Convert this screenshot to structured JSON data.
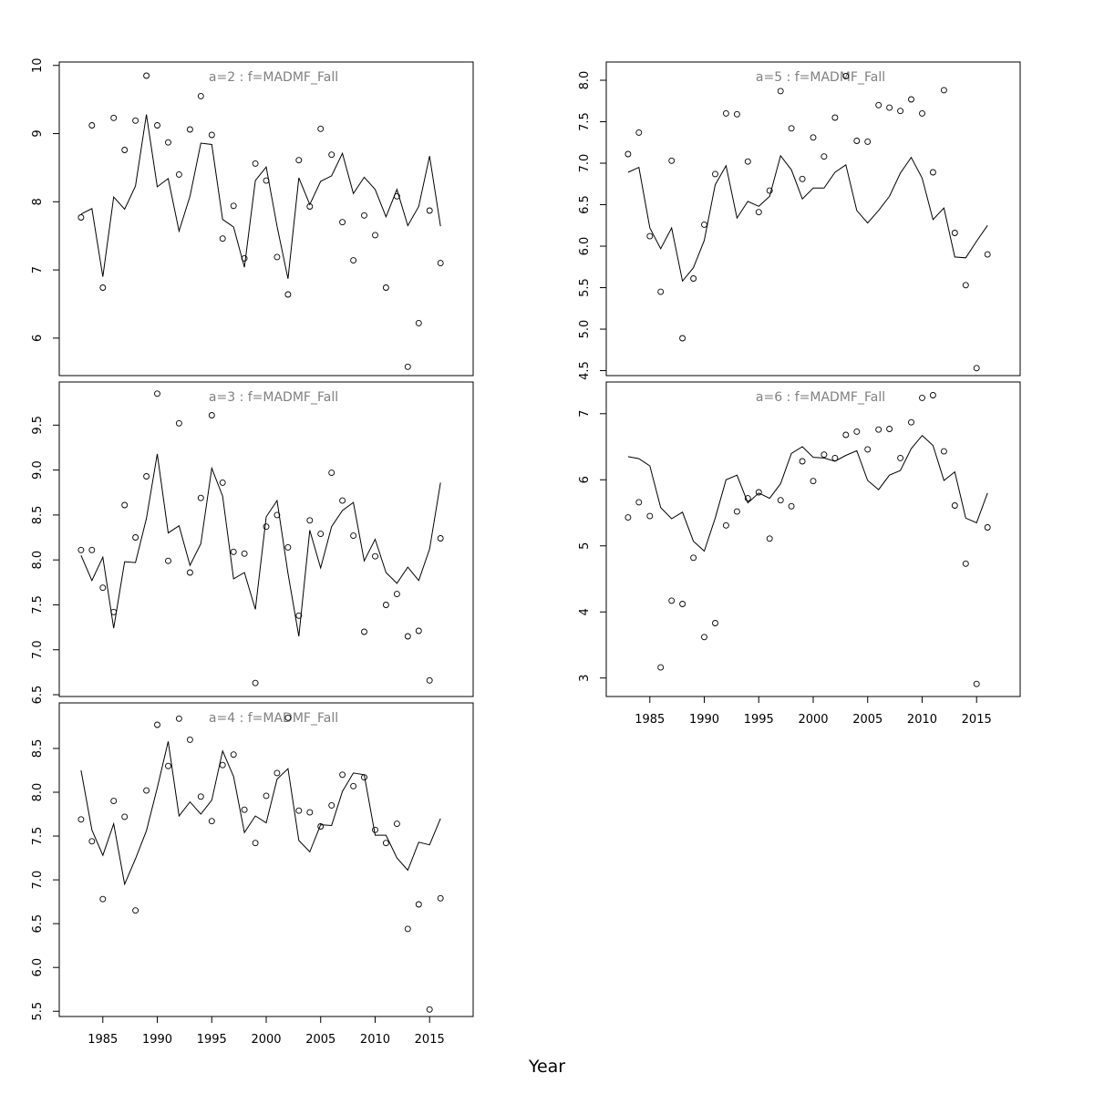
{
  "chart_data": {
    "type": "scatter",
    "xlabel": "Year",
    "x_ticks": [
      1985,
      1990,
      1995,
      2000,
      2005,
      2010,
      2015
    ],
    "years": [
      1983,
      1984,
      1985,
      1986,
      1987,
      1988,
      1989,
      1990,
      1991,
      1992,
      1993,
      1994,
      1995,
      1996,
      1997,
      1998,
      1999,
      2000,
      2001,
      2002,
      2003,
      2004,
      2005,
      2006,
      2007,
      2008,
      2009,
      2010,
      2011,
      2012,
      2013,
      2014,
      2015,
      2016
    ],
    "xlim": [
      1981.0,
      2019.0
    ],
    "panels": [
      {
        "title": "a=2 : f=MADMF_Fall",
        "ylim": [
          5.45,
          10.05
        ],
        "yticks": [
          6,
          7,
          8,
          9,
          10
        ],
        "ytick_labels": [
          "6",
          "7",
          "8",
          "9",
          "10"
        ],
        "observed": [
          7.77,
          9.12,
          6.74,
          9.23,
          8.76,
          9.19,
          9.85,
          9.12,
          8.87,
          8.4,
          9.06,
          9.55,
          8.98,
          7.46,
          7.94,
          7.17,
          8.56,
          8.31,
          7.19,
          6.64,
          8.61,
          7.93,
          9.07,
          8.69,
          7.7,
          7.14,
          7.8,
          7.51,
          6.74,
          8.08,
          5.58,
          6.22,
          7.87,
          7.1
        ],
        "predicted": [
          7.82,
          7.9,
          6.9,
          8.07,
          7.89,
          8.23,
          9.28,
          8.22,
          8.34,
          7.57,
          8.08,
          8.86,
          8.84,
          7.74,
          7.63,
          7.04,
          8.31,
          8.51,
          7.64,
          6.87,
          8.35,
          7.96,
          8.3,
          8.38,
          8.71,
          8.12,
          8.36,
          8.18,
          7.78,
          8.18,
          7.65,
          7.93,
          8.67,
          7.64
        ]
      },
      {
        "title": "a=3 : f=MADMF_Fall",
        "ylim": [
          6.48,
          9.98
        ],
        "yticks": [
          6.5,
          7.0,
          7.5,
          8.0,
          8.5,
          9.0,
          9.5
        ],
        "ytick_labels": [
          "6.5",
          "7.0",
          "7.5",
          "8.0",
          "8.5",
          "9.0",
          "9.5"
        ],
        "observed": [
          8.11,
          8.11,
          7.69,
          7.42,
          8.61,
          8.25,
          8.93,
          9.85,
          7.99,
          9.52,
          7.86,
          8.69,
          9.61,
          8.86,
          8.09,
          8.07,
          6.63,
          8.37,
          8.5,
          8.14,
          7.38,
          8.44,
          8.29,
          8.97,
          8.66,
          8.27,
          7.2,
          8.04,
          7.5,
          7.62,
          7.15,
          7.21,
          6.66,
          8.24
        ],
        "predicted": [
          8.05,
          7.77,
          8.03,
          7.24,
          7.98,
          7.97,
          8.46,
          9.18,
          8.3,
          8.38,
          7.94,
          8.18,
          9.02,
          8.71,
          7.79,
          7.86,
          7.45,
          8.48,
          8.66,
          7.85,
          7.15,
          8.33,
          7.91,
          8.37,
          8.55,
          8.64,
          7.99,
          8.23,
          7.86,
          7.74,
          7.92,
          7.77,
          8.12,
          8.86
        ]
      },
      {
        "title": "a=4 : f=MADMF_Fall",
        "ylim": [
          5.44,
          9.02
        ],
        "yticks": [
          5.5,
          6.0,
          6.5,
          7.0,
          7.5,
          8.0,
          8.5
        ],
        "ytick_labels": [
          "5.5",
          "6.0",
          "6.5",
          "7.0",
          "7.5",
          "8.0",
          "8.5"
        ],
        "observed": [
          7.69,
          7.44,
          6.78,
          7.9,
          7.72,
          6.65,
          8.02,
          8.77,
          8.3,
          8.84,
          8.6,
          7.95,
          7.67,
          8.31,
          8.43,
          7.8,
          7.42,
          7.96,
          8.22,
          8.85,
          7.79,
          7.77,
          7.61,
          7.85,
          8.2,
          8.07,
          8.17,
          7.57,
          7.42,
          7.64,
          6.44,
          6.72,
          5.52,
          6.79
        ],
        "predicted": [
          8.25,
          7.57,
          7.28,
          7.64,
          6.95,
          7.24,
          7.56,
          8.05,
          8.58,
          7.73,
          7.89,
          7.75,
          7.91,
          8.47,
          8.18,
          7.54,
          7.73,
          7.65,
          8.15,
          8.27,
          7.45,
          7.32,
          7.63,
          7.62,
          8.01,
          8.22,
          8.2,
          7.51,
          7.51,
          7.25,
          7.11,
          7.43,
          7.4,
          7.7
        ]
      },
      {
        "title": "a=5 : f=MADMF_Fall",
        "ylim": [
          4.44,
          8.22
        ],
        "yticks": [
          4.5,
          5.0,
          5.5,
          6.0,
          6.5,
          7.0,
          7.5,
          8.0
        ],
        "ytick_labels": [
          "4.5",
          "5.0",
          "5.5",
          "6.0",
          "6.5",
          "7.0",
          "7.5",
          "8.0"
        ],
        "observed": [
          7.11,
          7.37,
          6.12,
          5.45,
          7.03,
          4.89,
          5.61,
          6.26,
          6.87,
          7.6,
          7.59,
          7.02,
          6.41,
          6.67,
          7.87,
          7.42,
          6.81,
          7.31,
          7.08,
          7.55,
          8.05,
          7.27,
          7.26,
          7.7,
          7.67,
          7.63,
          7.77,
          7.6,
          6.89,
          7.88,
          6.16,
          5.53,
          4.53,
          5.9
        ],
        "predicted": [
          6.89,
          6.95,
          6.22,
          5.97,
          6.22,
          5.58,
          5.74,
          6.07,
          6.74,
          6.97,
          6.34,
          6.54,
          6.48,
          6.6,
          7.09,
          6.92,
          6.57,
          6.7,
          6.7,
          6.89,
          6.98,
          6.43,
          6.28,
          6.43,
          6.6,
          6.88,
          7.07,
          6.82,
          6.32,
          6.46,
          5.87,
          5.86,
          6.06,
          6.25
        ]
      },
      {
        "title": "a=6 : f=MADMF_Fall",
        "ylim": [
          2.72,
          7.48
        ],
        "yticks": [
          3,
          4,
          5,
          6,
          7
        ],
        "ytick_labels": [
          "3",
          "4",
          "5",
          "6",
          "7"
        ],
        "observed": [
          5.43,
          5.66,
          5.45,
          3.16,
          4.17,
          4.12,
          4.82,
          3.62,
          3.83,
          5.31,
          5.52,
          5.72,
          5.81,
          5.11,
          5.69,
          5.6,
          6.28,
          5.98,
          6.38,
          6.33,
          6.68,
          6.73,
          6.46,
          6.76,
          6.77,
          6.33,
          6.87,
          7.24,
          7.28,
          6.43,
          5.61,
          4.73,
          2.91,
          5.28
        ],
        "predicted": [
          6.35,
          6.32,
          6.21,
          5.58,
          5.41,
          5.51,
          5.07,
          4.92,
          5.42,
          6.0,
          6.07,
          5.65,
          5.8,
          5.72,
          5.94,
          6.4,
          6.5,
          6.34,
          6.33,
          6.28,
          6.37,
          6.44,
          5.99,
          5.85,
          6.07,
          6.14,
          6.47,
          6.67,
          6.52,
          5.99,
          6.12,
          5.42,
          5.35,
          5.8
        ]
      }
    ]
  }
}
